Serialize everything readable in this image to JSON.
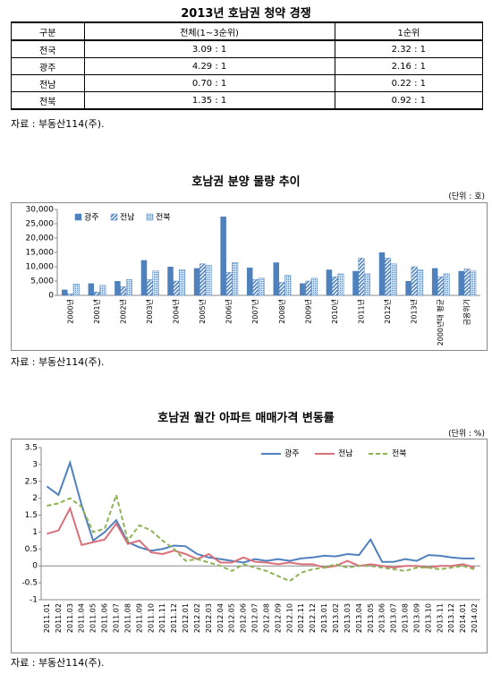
{
  "table": {
    "title": "2013년 호남권 청약 경쟁",
    "header": [
      "구분",
      "전체(1~3순위)",
      "1순위"
    ],
    "rows": [
      [
        "전국",
        "3.09 : 1",
        "2.32 : 1"
      ],
      [
        "광주",
        "4.29 : 1",
        "2.16 : 1"
      ],
      [
        "전남",
        "0.70 : 1",
        "0.22 : 1"
      ],
      [
        "전북",
        "1.35 : 1",
        "0.92 : 1"
      ]
    ],
    "source": "자료 : 부동산114(주)."
  },
  "chart_data": [
    {
      "type": "bar",
      "title": "호남권 분양 물량 추이",
      "unit": "(단위 : 호)",
      "source": "자료 : 부동산114(주).",
      "categories": [
        "2000년",
        "2001년",
        "2002년",
        "2003년",
        "2004년",
        "2005년",
        "2006년",
        "2007년",
        "2008년",
        "2009년",
        "2010년",
        "2011년",
        "2012년",
        "2013년",
        "2000년대 평균",
        "금융위기"
      ],
      "series": [
        {
          "name": "광주",
          "color": "#4f81bd",
          "fill_style": "solid",
          "values": [
            2000,
            4200,
            5000,
            12300,
            10000,
            9500,
            27500,
            9700,
            11500,
            4200,
            9000,
            8500,
            15000,
            5000,
            9500,
            8500
          ]
        },
        {
          "name": "전남",
          "color": "#4f81bd",
          "fill_style": "hatch",
          "values": [
            500,
            1200,
            3000,
            5500,
            5000,
            11000,
            8000,
            5500,
            4500,
            5000,
            6500,
            13000,
            13000,
            10000,
            6500,
            9200
          ]
        },
        {
          "name": "전북",
          "color": "#4f81bd",
          "fill_style": "dots",
          "values": [
            4000,
            3500,
            5500,
            8500,
            9000,
            10500,
            11500,
            6000,
            7000,
            6000,
            7500,
            7500,
            11000,
            9000,
            7500,
            8500
          ]
        }
      ],
      "ylim": [
        0,
        30000
      ],
      "yticks": [
        0,
        {
          "value": 5000,
          "label": "5,000"
        },
        {
          "value": 10000,
          "label": "10,000"
        },
        {
          "value": 15000,
          "label": "15,000"
        },
        {
          "value": 20000,
          "label": "20,000"
        },
        {
          "value": 25000,
          "label": "25,000"
        },
        {
          "value": 30000,
          "label": "30,000"
        }
      ],
      "grid": false,
      "legend": "top-left"
    },
    {
      "type": "line",
      "title": "호남권 월간 아파트 매매가격 변동률",
      "unit": "(단위 : %)",
      "source": "자료 : 부동산114(주).",
      "categories": [
        "2011.01",
        "2011.02",
        "2011.03",
        "2011.04",
        "2011.05",
        "2011.06",
        "2011.07",
        "2011.08",
        "2011.09",
        "2011.10",
        "2011.11",
        "2011.12",
        "2012.01",
        "2012.02",
        "2012.03",
        "2012.04",
        "2012.05",
        "2012.06",
        "2012.07",
        "2012.08",
        "2012.09",
        "2012.10",
        "2012.11",
        "2012.12",
        "2013.01",
        "2013.02",
        "2013.03",
        "2013.04",
        "2013.05",
        "2013.06",
        "2013.07",
        "2013.08",
        "2013.09",
        "2013.10",
        "2013.11",
        "2013.12",
        "2014.01",
        "2014.02"
      ],
      "series": [
        {
          "name": "광주",
          "color": "#4f81bd",
          "dash": false,
          "values": [
            2.35,
            2.1,
            3.05,
            1.8,
            0.75,
            1.0,
            1.35,
            0.7,
            0.55,
            0.45,
            0.5,
            0.6,
            0.58,
            0.35,
            0.25,
            0.2,
            0.15,
            0.1,
            0.2,
            0.15,
            0.2,
            0.15,
            0.22,
            0.25,
            0.3,
            0.28,
            0.35,
            0.32,
            0.78,
            0.12,
            0.12,
            0.2,
            0.15,
            0.32,
            0.3,
            0.25,
            0.22,
            0.22
          ]
        },
        {
          "name": "전남",
          "color": "#d9707a",
          "dash": false,
          "values": [
            0.95,
            1.05,
            1.7,
            0.62,
            0.7,
            0.78,
            1.25,
            0.65,
            0.75,
            0.4,
            0.35,
            0.45,
            0.35,
            0.2,
            0.35,
            0.1,
            0.1,
            0.25,
            0.12,
            0.1,
            0.05,
            0.1,
            0.05,
            0.05,
            -0.05,
            0,
            0.15,
            0,
            0.05,
            0,
            -0.05,
            0,
            0,
            -0.05,
            0,
            0,
            0.05,
            -0.05
          ]
        },
        {
          "name": "전북",
          "color": "#8db356",
          "dash": true,
          "values": [
            1.78,
            1.85,
            2.0,
            1.75,
            1.0,
            1.1,
            2.1,
            0.75,
            1.2,
            1.05,
            0.75,
            0.5,
            0.15,
            0.2,
            0.1,
            0,
            -0.15,
            0.05,
            -0.05,
            -0.15,
            -0.3,
            -0.45,
            -0.2,
            -0.1,
            -0.05,
            0.05,
            -0.05,
            0,
            0,
            -0.05,
            -0.1,
            -0.15,
            -0.05,
            -0.05,
            -0.1,
            -0.05,
            0,
            -0.1
          ]
        }
      ],
      "ylim": [
        -1,
        3.5
      ],
      "yticks": [
        -1,
        -0.5,
        0,
        0.5,
        1,
        1.5,
        2,
        2.5,
        3,
        3.5
      ],
      "grid": false,
      "legend": "top-right"
    }
  ]
}
